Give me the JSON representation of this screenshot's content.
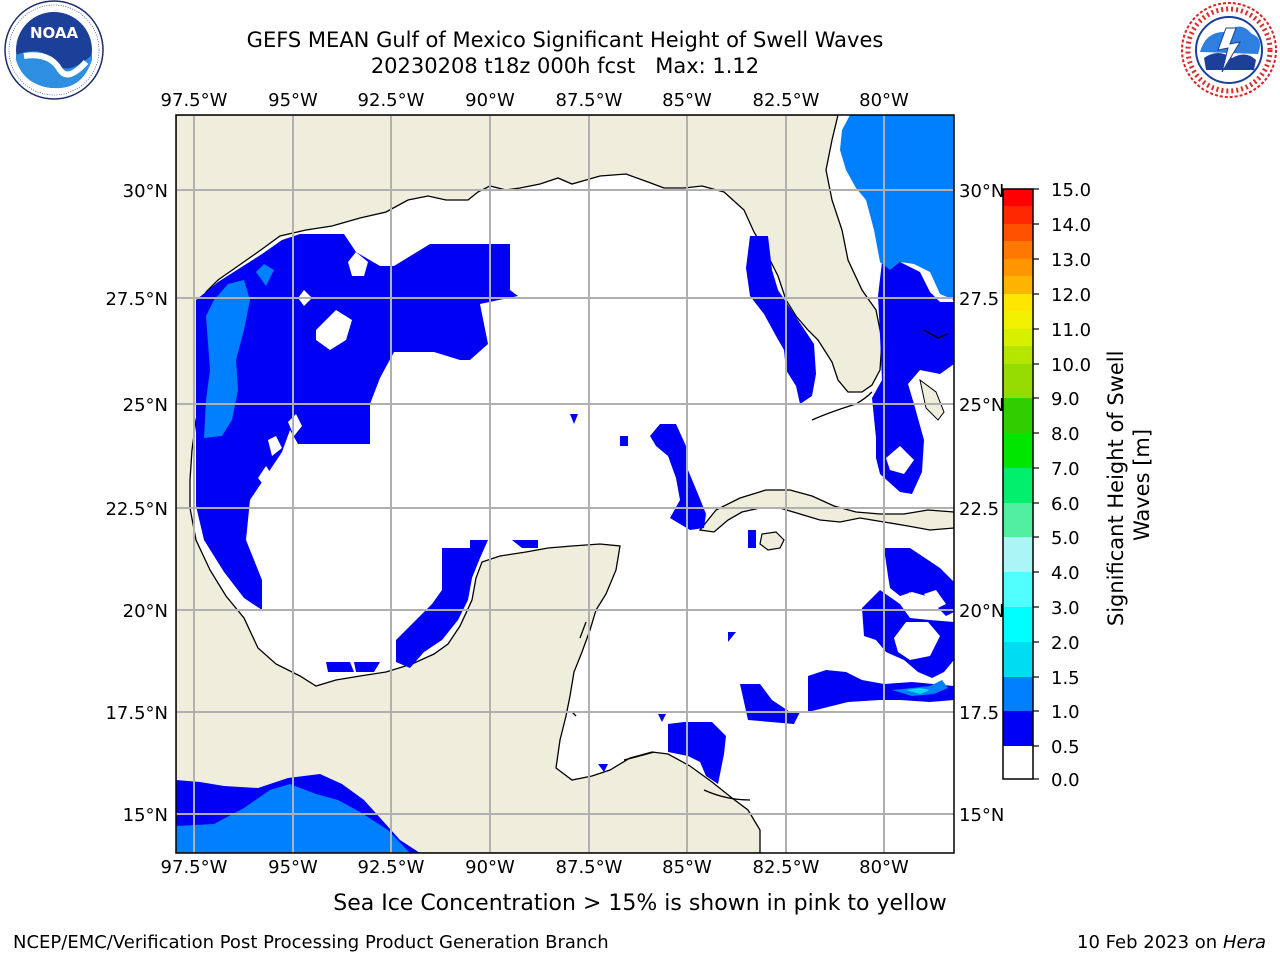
{
  "header": {
    "title_line1": "GEFS MEAN Gulf of Mexico Significant Height of Swell Waves",
    "title_line2": "20230208 t18z 000h fcst   Max: 1.12"
  },
  "logos": {
    "left": {
      "name": "NOAA",
      "ring_text": "NATIONAL OCEANIC AND ATMOSPHERIC ADMINISTRATION · U.S. DEPARTMENT OF COMMERCE"
    },
    "right": {
      "name": "NATIONAL WEATHER SERVICE"
    }
  },
  "map": {
    "lon_ticks": [
      "97.5°W",
      "95°W",
      "92.5°W",
      "90°W",
      "87.5°W",
      "85°W",
      "82.5°W",
      "80°W"
    ],
    "lat_ticks_left": [
      "30°N",
      "27.5°N",
      "25°N",
      "22.5°N",
      "20°N",
      "17.5°N",
      "15°N"
    ],
    "lat_ticks_right": [
      "30°N",
      "27.5",
      "25°N",
      "22.5",
      "20°N",
      "17.5",
      "15°N"
    ],
    "colors": {
      "land": "#efeedd",
      "ocean": "#ffffff",
      "grid": "#b0b0b0",
      "swell_0_0_5": "#0000f5",
      "swell_0_5_1_0": "#0080ff",
      "swell_1_0_1_5": "#00dcf0"
    }
  },
  "colorbar": {
    "label": "Significant Height of Swell Waves [m]",
    "tick_labels": [
      "15.0",
      "14.0",
      "13.0",
      "12.0",
      "11.0",
      "10.0",
      "9.0",
      "8.0",
      "7.0",
      "6.0",
      "5.0",
      "4.0",
      "3.0",
      "2.0",
      "1.5",
      "1.0",
      "0.5",
      "0.0"
    ],
    "colors_top_to_bottom": [
      "#ff0000",
      "#ff2800",
      "#ff5000",
      "#ff7800",
      "#ff9600",
      "#ffb400",
      "#ffe600",
      "#f0f000",
      "#d7f000",
      "#b4e600",
      "#96dc00",
      "#32cd00",
      "#00e600",
      "#00f06e",
      "#50f0a0",
      "#aaf5f5",
      "#50ffff",
      "#00ffff",
      "#00dcf0",
      "#0080ff",
      "#0000f5"
    ]
  },
  "notes": {
    "sea_ice": "Sea Ice Concentration > 15% is shown in pink to yellow"
  },
  "footer": {
    "left": "NCEP/EMC/Verification Post Processing Product Generation Branch",
    "right_date": "10 Feb 2023 on",
    "right_machine": "Hera"
  }
}
